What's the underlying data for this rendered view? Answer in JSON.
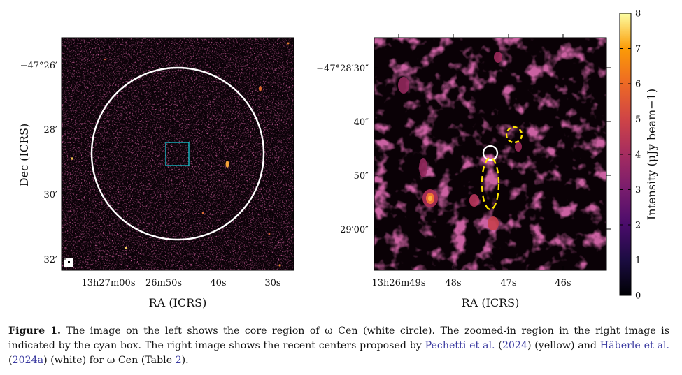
{
  "figure": {
    "left_panel": {
      "y_axis_title": "Dec (ICRS)",
      "x_axis_title": "RA (ICRS)",
      "y_ticks": [
        "−47°26′",
        "28′",
        "30′",
        "32′"
      ],
      "x_ticks": [
        "13h27m00s",
        "26m50s",
        "40s",
        "30s"
      ],
      "overlays": [
        "core-region-circle (white)",
        "zoom-box (cyan)",
        "beam-marker (white)"
      ]
    },
    "right_panel": {
      "x_axis_title": "RA (ICRS)",
      "y_ticks": [
        "−47°28′30″",
        "40″",
        "50″",
        "29′00″"
      ],
      "x_ticks": [
        "13h26m49s",
        "48s",
        "47s",
        "46s"
      ],
      "overlays": [
        "Pechetti et al. (2024) center (yellow dashed)",
        "Häberle et al. (2024a) center (white)"
      ]
    },
    "colorbar": {
      "title": "Intensity (μJy beam−1)",
      "ticks": [
        "0",
        "1",
        "2",
        "3",
        "4",
        "5",
        "6",
        "7",
        "8"
      ],
      "range": [
        0,
        8
      ],
      "colormap": "inferno"
    }
  },
  "caption": {
    "label": "Figure 1.",
    "part1": " The image on the left shows the core region of ω Cen (white circle). The zoomed-in region in the right image is indicated by the cyan box. The right image shows the recent centers proposed by ",
    "cite1": "Pechetti et al.",
    "paren1_open": " (",
    "cite1_year": "2024",
    "paren1_close": ") (yellow) and ",
    "cite2": "Häberle et al.",
    "paren2_open": " (",
    "cite2_year": "2024a",
    "paren2_close": ") (white) for ω Cen (Table ",
    "table_ref": "2",
    "end": ")."
  },
  "colors": {
    "circle": "#ffffff",
    "box": "#17c8d4",
    "yellow": "#ffe600"
  }
}
